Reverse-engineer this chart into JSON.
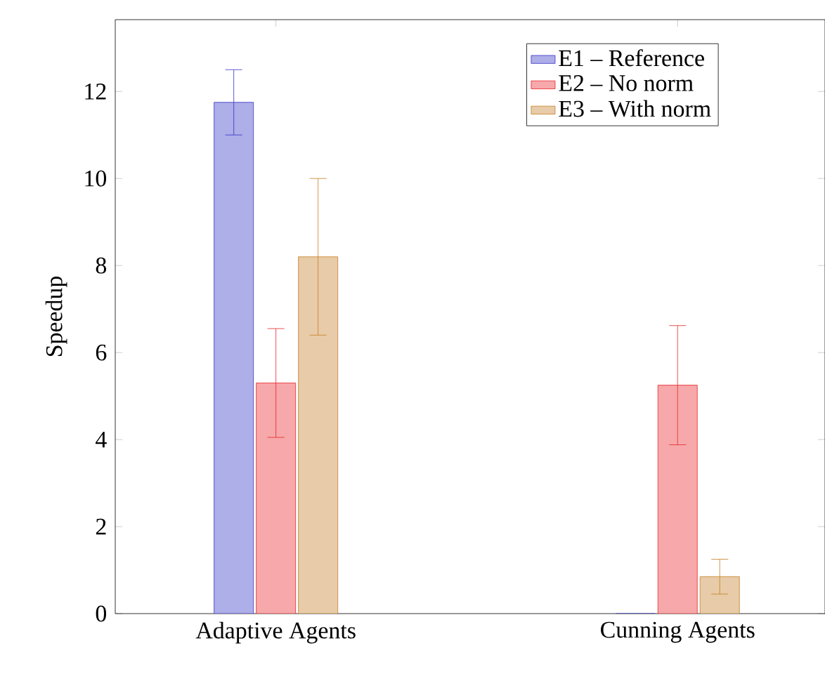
{
  "chart_data": {
    "type": "bar",
    "ylabel": "Speedup",
    "categories": [
      "Adaptive Agents",
      "Cunning Agents"
    ],
    "series": [
      {
        "name": "E1 – Reference",
        "color": "#aeaee8",
        "values": [
          11.75,
          0
        ],
        "errors": [
          0.75,
          null
        ]
      },
      {
        "name": "E2 – No norm",
        "color": "#f6a8aa",
        "values": [
          5.3,
          5.25
        ],
        "errors": [
          1.25,
          1.37
        ]
      },
      {
        "name": "E3 – With norm",
        "color": "#e8cba8",
        "values": [
          8.2,
          0.85
        ],
        "errors": [
          1.8,
          0.4
        ]
      }
    ],
    "ylim": [
      0,
      13.65
    ],
    "yticks": [
      0,
      2,
      4,
      6,
      8,
      10,
      12
    ],
    "legend": "top right"
  }
}
